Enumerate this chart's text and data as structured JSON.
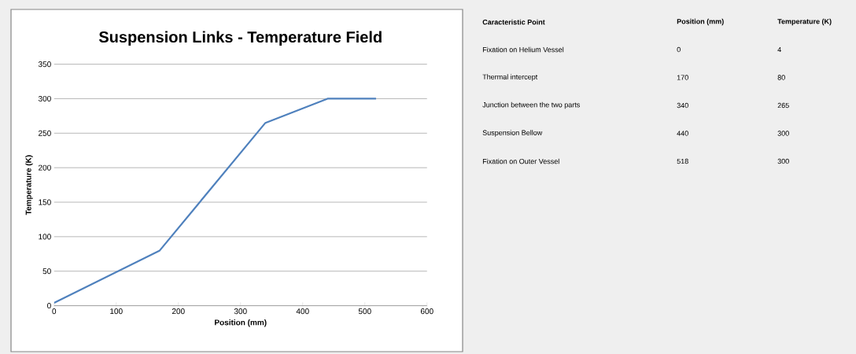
{
  "chart_data": {
    "type": "line",
    "title": "Suspension Links - Temperature Field",
    "xlabel": "Position (mm)",
    "ylabel": "Temperature (K)",
    "x": [
      0,
      170,
      340,
      440,
      518
    ],
    "series": [
      {
        "color": "#4f81bd",
        "values": [
          4,
          80,
          265,
          300,
          300
        ]
      }
    ],
    "xlim": [
      0,
      600
    ],
    "ylim": [
      0,
      350
    ],
    "xticks": [
      0,
      100,
      200,
      300,
      400,
      500,
      600
    ],
    "yticks": [
      0,
      50,
      100,
      150,
      200,
      250,
      300,
      350
    ],
    "grid": "y",
    "marker": "none",
    "line_style": "solid",
    "annotations": [
      "Caracteristic Point",
      "Position (mm)",
      "Temperature (K)",
      "Fixation on Helium Vessel",
      "0",
      "4",
      "Thermal intercept",
      "170",
      "80",
      "Junction between the two parts",
      "340",
      "265",
      "Suspension Bellow",
      "440",
      "300",
      "Fixation on Outer Vessel",
      "518",
      "300"
    ]
  }
}
